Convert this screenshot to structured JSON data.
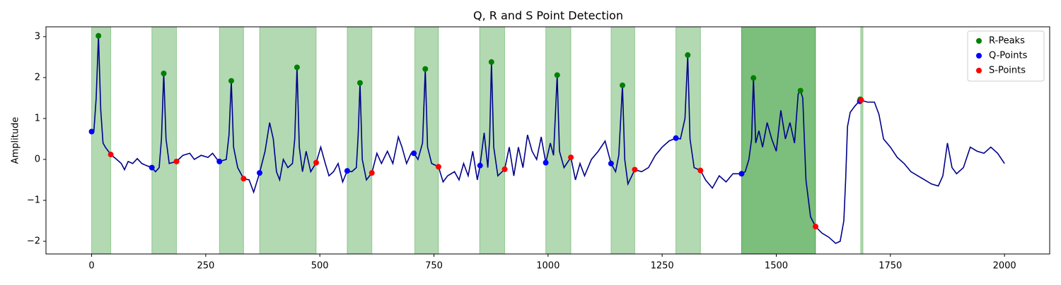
{
  "chart_data": {
    "type": "line",
    "title": "Q, R and S Point Detection",
    "ylabel": "Amplitude",
    "xlim": [
      -100,
      2099
    ],
    "ylim": [
      -2.31,
      3.24
    ],
    "xticks": [
      0,
      250,
      500,
      750,
      1000,
      1250,
      1500,
      1750,
      2000
    ],
    "yticks": [
      {
        "value": -2,
        "label": "−2"
      },
      {
        "value": -1,
        "label": "−1"
      },
      0,
      1,
      2,
      3
    ],
    "legend": "upper right",
    "span_color": "#008000",
    "spans": [
      [
        0,
        42
      ],
      [
        132,
        186
      ],
      [
        280,
        333
      ],
      [
        368,
        492
      ],
      [
        560,
        614
      ],
      [
        708,
        760
      ],
      [
        850,
        905
      ],
      [
        995,
        1050
      ],
      [
        1138,
        1190
      ],
      [
        1280,
        1334
      ],
      [
        1424,
        1586
      ],
      [
        1424,
        1586
      ],
      [
        1685,
        1690
      ]
    ],
    "signal": {
      "color": "#00008b",
      "x": [
        0,
        5,
        10,
        15,
        20,
        25,
        30,
        42,
        55,
        65,
        72,
        80,
        90,
        100,
        110,
        120,
        132,
        140,
        148,
        153,
        158,
        163,
        170,
        186,
        200,
        215,
        225,
        240,
        255,
        265,
        275,
        280,
        295,
        301,
        306,
        311,
        320,
        333,
        345,
        355,
        368,
        380,
        390,
        398,
        405,
        412,
        420,
        430,
        440,
        445,
        450,
        455,
        462,
        470,
        480,
        492,
        502,
        512,
        520,
        530,
        540,
        550,
        560,
        570,
        580,
        584,
        588,
        593,
        602,
        614,
        625,
        635,
        648,
        660,
        672,
        680,
        690,
        700,
        706,
        715,
        725,
        731,
        736,
        745,
        760,
        770,
        780,
        795,
        805,
        815,
        825,
        835,
        845,
        851,
        860,
        868,
        872,
        876,
        881,
        890,
        905,
        915,
        925,
        935,
        945,
        955,
        965,
        975,
        985,
        995,
        1005,
        1012,
        1020,
        1025,
        1035,
        1050,
        1060,
        1070,
        1080,
        1095,
        1110,
        1125,
        1138,
        1148,
        1155,
        1163,
        1168,
        1175,
        1190,
        1205,
        1220,
        1235,
        1250,
        1265,
        1280,
        1290,
        1300,
        1306,
        1311,
        1320,
        1334,
        1345,
        1360,
        1375,
        1390,
        1405,
        1424,
        1432,
        1440,
        1446,
        1450,
        1455,
        1462,
        1470,
        1480,
        1490,
        1500,
        1510,
        1520,
        1530,
        1540,
        1548,
        1553,
        1558,
        1565,
        1575,
        1586,
        1600,
        1615,
        1630,
        1640,
        1648,
        1652,
        1656,
        1662,
        1672,
        1684,
        1700,
        1715,
        1725,
        1735,
        1750,
        1765,
        1780,
        1795,
        1810,
        1825,
        1840,
        1855,
        1865,
        1875,
        1885,
        1895,
        1910,
        1925,
        1940,
        1955,
        1970,
        1985,
        2000
      ],
      "values": [
        0.68,
        0.7,
        1.5,
        3.02,
        1.2,
        0.4,
        0.3,
        0.12,
        0.0,
        -0.1,
        -0.25,
        -0.05,
        -0.1,
        0.02,
        -0.1,
        -0.15,
        -0.2,
        -0.3,
        -0.2,
        0.5,
        2.1,
        0.5,
        -0.1,
        -0.05,
        0.1,
        0.15,
        0.0,
        0.1,
        0.05,
        0.15,
        0.0,
        -0.05,
        0.0,
        0.6,
        1.92,
        0.3,
        -0.2,
        -0.47,
        -0.5,
        -0.8,
        -0.33,
        0.2,
        0.9,
        0.5,
        -0.3,
        -0.5,
        0.0,
        -0.2,
        -0.1,
        0.5,
        2.25,
        0.3,
        -0.3,
        0.2,
        -0.3,
        -0.08,
        0.3,
        -0.1,
        -0.4,
        -0.3,
        -0.1,
        -0.55,
        -0.28,
        -0.3,
        -0.2,
        0.6,
        1.87,
        0.0,
        -0.5,
        -0.33,
        0.15,
        -0.1,
        0.2,
        -0.1,
        0.55,
        0.3,
        -0.1,
        0.15,
        0.15,
        0.0,
        0.4,
        2.21,
        0.3,
        -0.1,
        -0.18,
        -0.55,
        -0.4,
        -0.3,
        -0.5,
        -0.1,
        -0.4,
        0.2,
        -0.5,
        -0.15,
        0.65,
        -0.2,
        0.5,
        2.38,
        0.3,
        -0.4,
        -0.24,
        0.3,
        -0.4,
        0.3,
        -0.2,
        0.6,
        0.2,
        0.0,
        0.55,
        -0.08,
        0.4,
        0.1,
        2.06,
        0.2,
        -0.2,
        0.05,
        -0.5,
        -0.1,
        -0.4,
        0.0,
        0.2,
        0.45,
        -0.1,
        -0.3,
        0.1,
        1.81,
        0.0,
        -0.6,
        -0.25,
        -0.3,
        -0.2,
        0.1,
        0.3,
        0.45,
        0.52,
        0.5,
        1.0,
        2.55,
        0.5,
        -0.2,
        -0.27,
        -0.5,
        -0.7,
        -0.4,
        -0.55,
        -0.35,
        -0.35,
        -0.3,
        0.0,
        0.5,
        1.99,
        0.4,
        0.7,
        0.3,
        0.9,
        0.5,
        0.2,
        1.2,
        0.5,
        0.9,
        0.4,
        1.6,
        1.68,
        1.5,
        -0.5,
        -1.4,
        -1.64,
        -1.8,
        -1.9,
        -2.05,
        -2.0,
        -1.5,
        -0.5,
        0.8,
        1.15,
        1.3,
        1.45,
        1.4,
        1.4,
        1.1,
        0.5,
        0.3,
        0.05,
        -0.1,
        -0.3,
        -0.4,
        -0.5,
        -0.6,
        -0.65,
        -0.4,
        0.4,
        -0.2,
        -0.35,
        -0.2,
        0.3,
        0.2,
        0.15,
        0.3,
        0.15,
        -0.1
      ]
    },
    "series": [
      {
        "name": "R-Peaks",
        "color": "#008000",
        "x": [
          15,
          158,
          306,
          450,
          588,
          731,
          876,
          1020,
          1163,
          1306,
          1450,
          1553,
          1684
        ],
        "values": [
          3.02,
          2.1,
          1.92,
          2.25,
          1.87,
          2.21,
          2.38,
          2.06,
          1.81,
          2.55,
          1.99,
          1.68,
          1.47
        ]
      },
      {
        "name": "Q-Points",
        "color": "#0000ff",
        "x": [
          0,
          132,
          280,
          368,
          560,
          706,
          851,
          995,
          1138,
          1280,
          1424,
          1683
        ],
        "values": [
          0.68,
          -0.2,
          -0.05,
          -0.33,
          -0.28,
          0.15,
          -0.15,
          -0.08,
          -0.1,
          0.52,
          -0.35,
          1.42
        ]
      },
      {
        "name": "S-Points",
        "color": "#ff0000",
        "x": [
          42,
          186,
          333,
          492,
          614,
          760,
          905,
          1050,
          1190,
          1334,
          1586,
          1686
        ],
        "values": [
          0.12,
          -0.05,
          -0.47,
          -0.08,
          -0.33,
          -0.18,
          -0.24,
          0.05,
          -0.25,
          -0.27,
          -1.64,
          1.45
        ]
      }
    ]
  }
}
